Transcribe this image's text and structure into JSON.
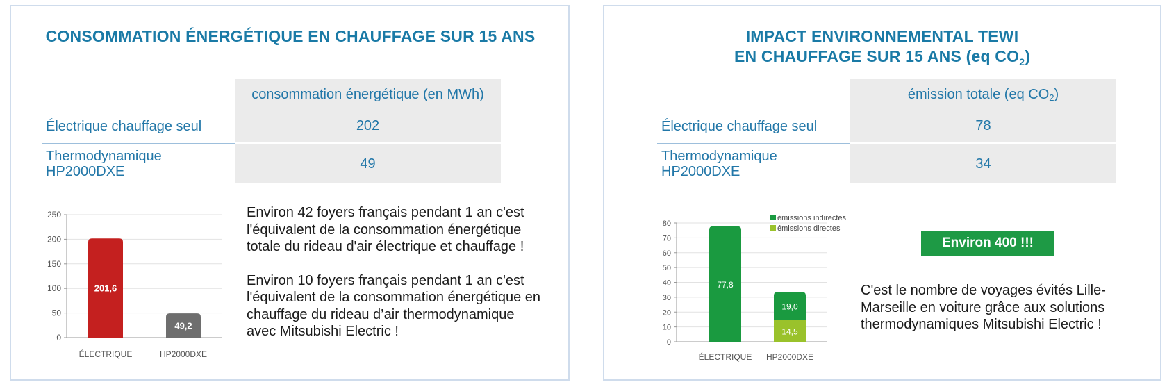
{
  "left": {
    "title": "CONSOMMATION ÉNERGÉTIQUE EN CHAUFFAGE SUR 15 ANS",
    "table": {
      "header": "consommation énergétique (en MWh)",
      "rows": [
        {
          "label": "Électrique chauffage seul",
          "value": "202"
        },
        {
          "label": "Thermodynamique HP2000DXE",
          "value": "49"
        }
      ]
    },
    "text": {
      "p1": "Environ 42 foyers français pendant 1 an c'est l'équivalent de la consommation énergétique totale du rideau d'air électrique et chauffage !",
      "p2": "Environ 10 foyers français pendant 1 an c'est l'équivalent de la consommation énergétique en chauffage du rideau d’air thermodynamique avec Mitsubishi Electric !"
    }
  },
  "right": {
    "title_line1": "IMPACT ENVIRONNEMENTAL TEWI",
    "title_line2_main": "EN CHAUFFAGE SUR 15 ANS (eq CO",
    "title_line2_sub": "2",
    "title_line2_end": ")",
    "table": {
      "header_main": "émission totale (eq CO",
      "header_sub": "2",
      "header_end": ")",
      "rows": [
        {
          "label": "Électrique chauffage seul",
          "value": "78"
        },
        {
          "label": "Thermodynamique HP2000DXE",
          "value": "34"
        }
      ]
    },
    "badge": "Environ 400 !!!",
    "text": "C'est le nombre de voyages évités Lille-Marseille en voiture grâce aux solutions thermodynamiques Mitsubishi Electric !"
  },
  "chart_data": [
    {
      "type": "bar",
      "categories": [
        "ÉLECTRIQUE",
        "HP2000DXE"
      ],
      "values": [
        201.6,
        49.2
      ],
      "value_labels": [
        "201,6",
        "49,2"
      ],
      "ylim": [
        0,
        250
      ],
      "yticks": [
        0,
        50,
        100,
        150,
        200,
        250
      ],
      "grid": true,
      "colors": [
        "#c4201f",
        "#6e6e6e"
      ]
    },
    {
      "type": "bar",
      "stacked": true,
      "categories": [
        "ÉLECTRIQUE",
        "HP2000DXE"
      ],
      "series": [
        {
          "name": "émissions directes",
          "values": [
            0,
            14.5
          ],
          "value_labels": [
            "",
            "14,5"
          ],
          "color": "#9ac22b"
        },
        {
          "name": "émissions indirectes",
          "values": [
            77.8,
            19.0
          ],
          "value_labels": [
            "77,8",
            "19,0"
          ],
          "color": "#1a9a40"
        }
      ],
      "ylim": [
        0,
        80
      ],
      "yticks": [
        0,
        10,
        20,
        30,
        40,
        50,
        60,
        70,
        80
      ],
      "grid": true,
      "legend_order": [
        "émissions indirectes",
        "émissions directes"
      ],
      "legend_position": "top-right"
    }
  ]
}
